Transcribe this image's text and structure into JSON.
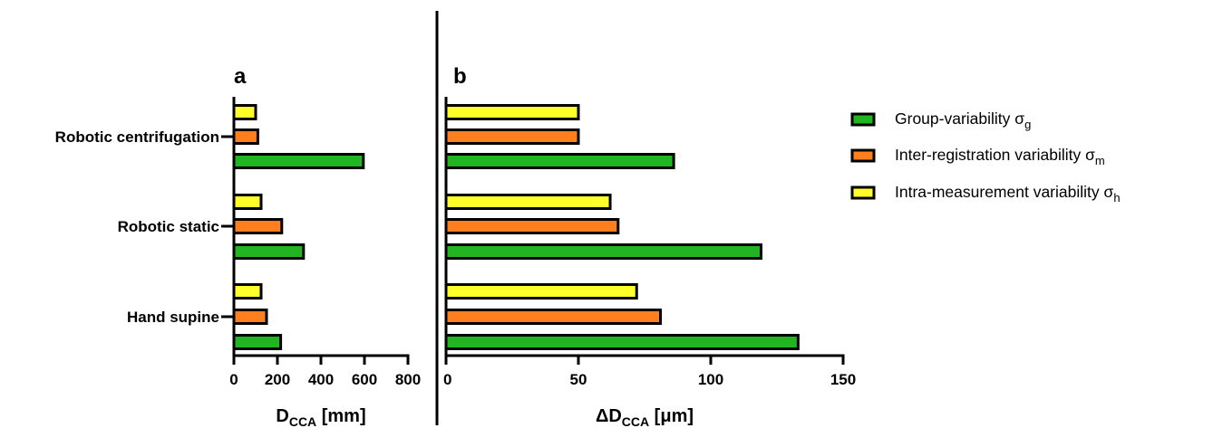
{
  "colors": {
    "group": "#22b522",
    "inter": "#ff7f1e",
    "intra": "#ffff2a",
    "outline": "#000000"
  },
  "legend": [
    {
      "key": "group",
      "label": "Group-variability σ",
      "sub": "g"
    },
    {
      "key": "inter",
      "label": "Inter-registration variability σ",
      "sub": "m"
    },
    {
      "key": "intra",
      "label": "Intra-measurement variability σ",
      "sub": "h"
    }
  ],
  "chart_data": [
    {
      "type": "bar",
      "orientation": "horizontal",
      "panel_label": "a",
      "categories": [
        "Robotic centrifugation",
        "Robotic static",
        "Hand supine"
      ],
      "xlabel": "D",
      "xlabel_sub": "CCA",
      "xlabel_unit": " [mm]",
      "xlim": [
        0,
        800
      ],
      "xticks": [
        0,
        200,
        400,
        600,
        800
      ],
      "grid": false,
      "series": [
        {
          "key": "intra",
          "values": [
            100,
            125,
            125
          ]
        },
        {
          "key": "inter",
          "values": [
            110,
            220,
            150
          ]
        },
        {
          "key": "group",
          "values": [
            595,
            320,
            215
          ]
        }
      ]
    },
    {
      "type": "bar",
      "orientation": "horizontal",
      "panel_label": "b",
      "categories": [
        "Robotic centrifugation",
        "Robotic static",
        "Hand supine"
      ],
      "xlabel": "ΔD",
      "xlabel_sub": "CCA",
      "xlabel_unit": " [μm]",
      "xlim": [
        0,
        150
      ],
      "xticks": [
        0,
        50,
        100,
        150
      ],
      "grid": false,
      "series": [
        {
          "key": "intra",
          "values": [
            50,
            62,
            72
          ]
        },
        {
          "key": "inter",
          "values": [
            50,
            65,
            81
          ]
        },
        {
          "key": "group",
          "values": [
            86,
            119,
            133
          ]
        }
      ]
    }
  ]
}
